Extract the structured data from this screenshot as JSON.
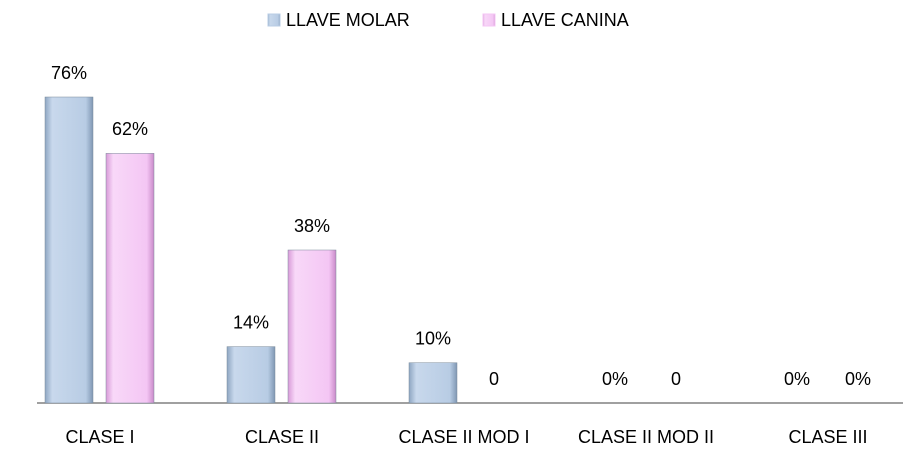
{
  "chart_data": {
    "type": "bar",
    "categories": [
      "CLASE I",
      "CLASE II",
      "CLASE II MOD I",
      "CLASE II MOD II",
      "CLASE III"
    ],
    "series": [
      {
        "name": "LLAVE MOLAR",
        "color": "#b8cce4",
        "values": [
          76,
          14,
          10,
          0,
          0
        ],
        "value_labels": [
          "76%",
          "14%",
          "10%",
          "0%",
          "0%"
        ]
      },
      {
        "name": "LLAVE CANINA",
        "color": "#f4c6f4",
        "values": [
          62,
          38,
          0,
          0,
          0
        ],
        "value_labels": [
          "62%",
          "38%",
          "0",
          "0",
          "0%"
        ]
      }
    ],
    "legend": "top"
  }
}
